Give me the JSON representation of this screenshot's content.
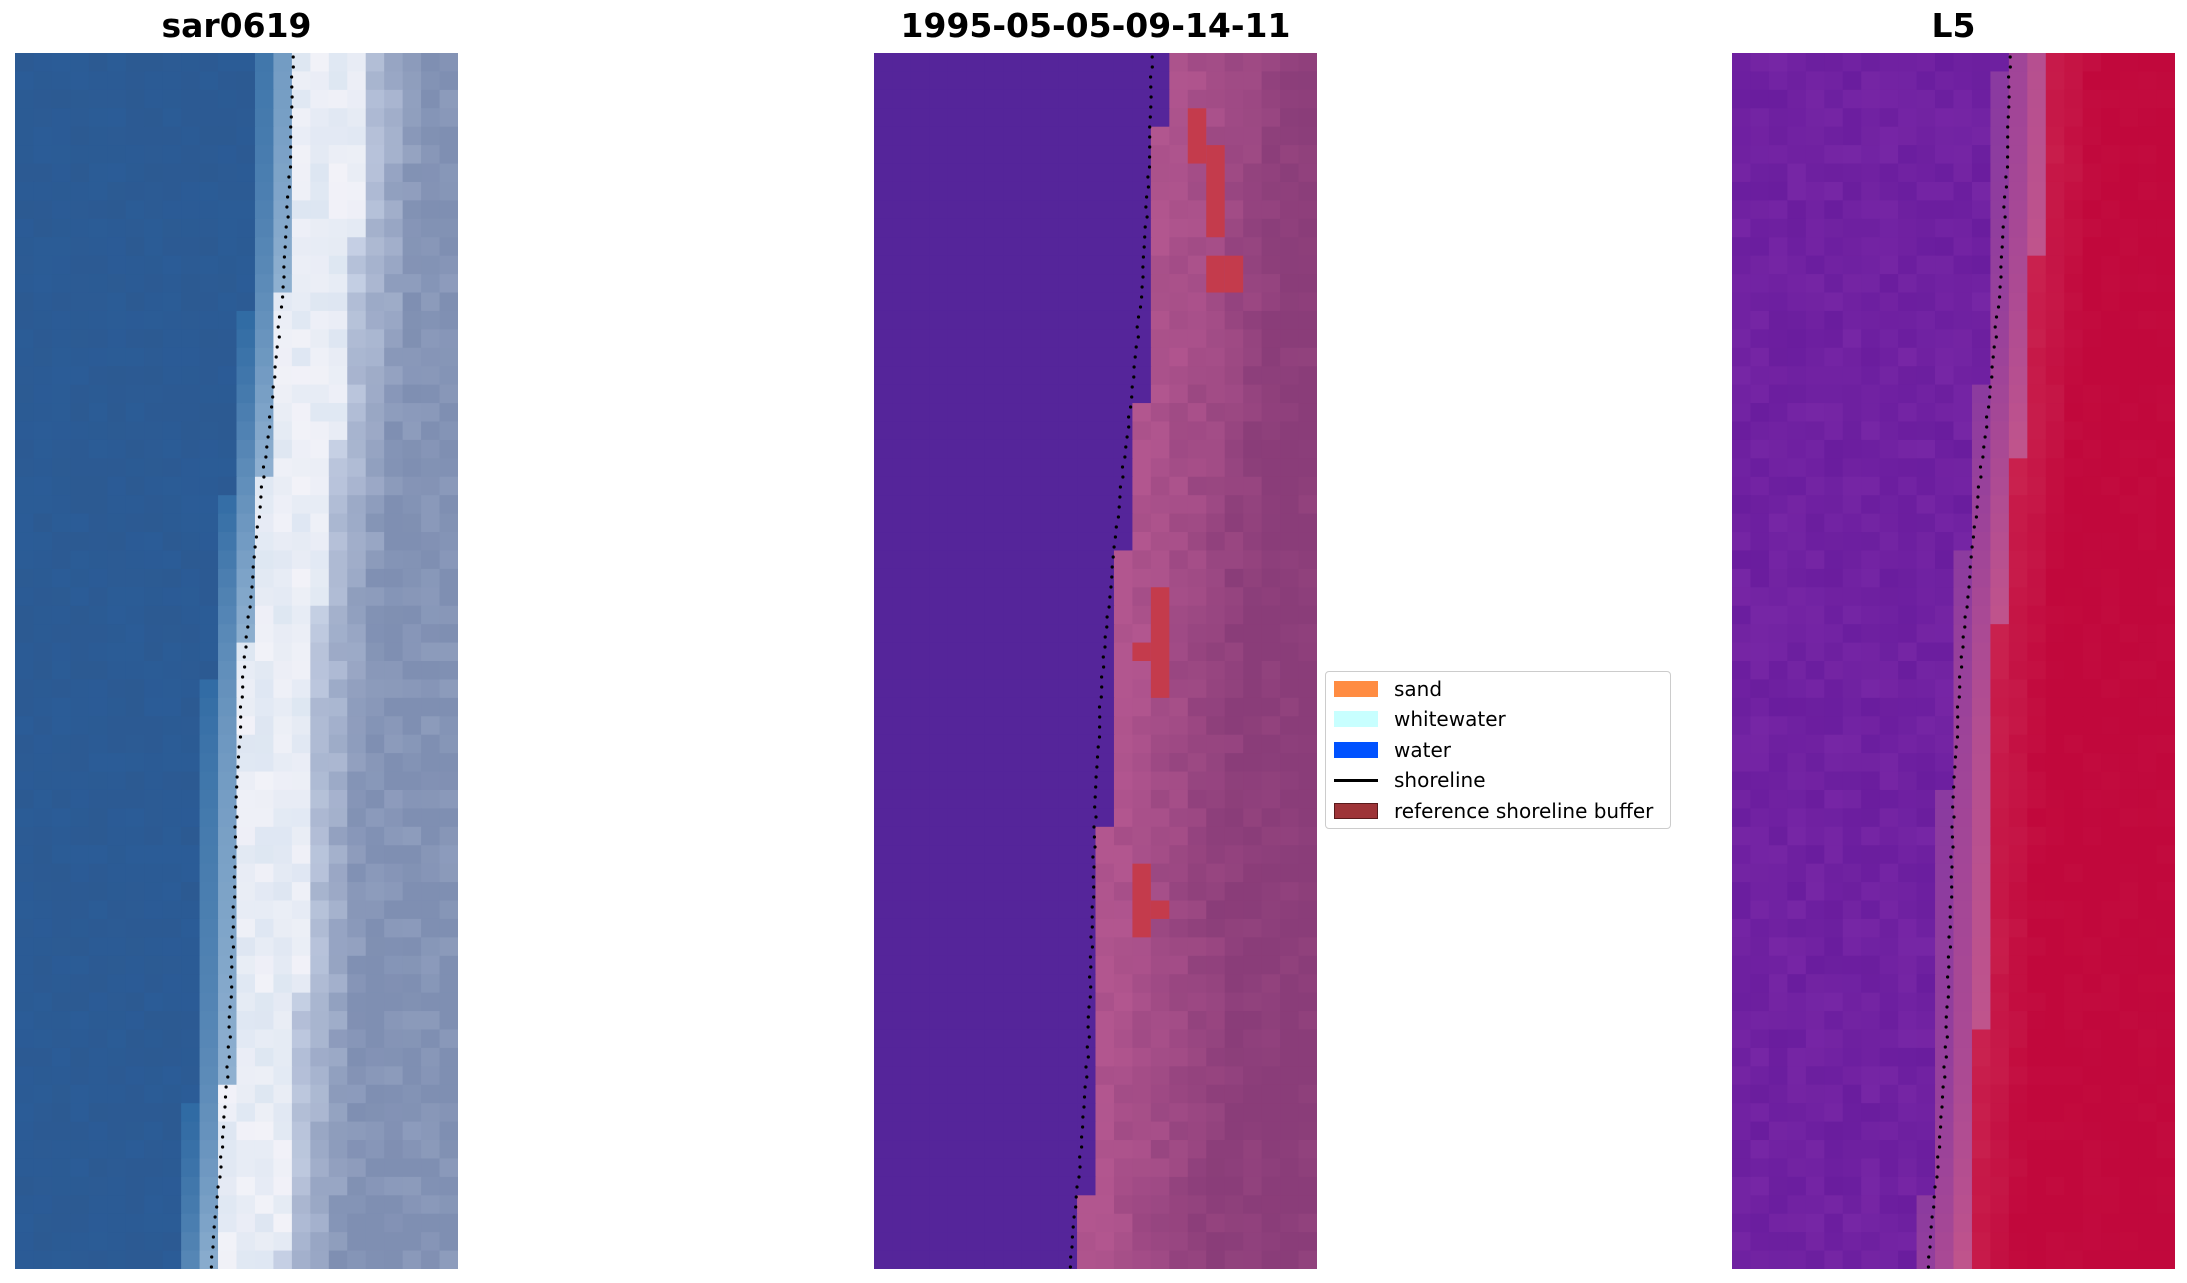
{
  "panels": [
    {
      "title": "sar0619",
      "kind": "rgb"
    },
    {
      "title": "1995-05-05-09-14-11",
      "kind": "classified"
    },
    {
      "title": "L5",
      "kind": "index"
    }
  ],
  "legend": {
    "items": [
      {
        "label": "sand",
        "color": "#ff8c42",
        "type": "patch"
      },
      {
        "label": "whitewater",
        "color": "#c8ffff",
        "type": "patch"
      },
      {
        "label": "water",
        "color": "#0052ff",
        "type": "patch"
      },
      {
        "label": "shoreline",
        "color": "#000000",
        "type": "line"
      },
      {
        "label": "reference shoreline buffer",
        "color": "#9e3438",
        "type": "patch"
      }
    ]
  },
  "colors": {
    "water_rgb": "#2c5a92",
    "surf_rgb": "#dde6f2",
    "beach_rgb": "#7f8fb2",
    "class_water": "#55259a",
    "class_land": "#b2568f",
    "class_land_dark": "#8a3d79",
    "buffer": "#c43b4c",
    "index_low": "#6a1d9e",
    "index_high": "#c1083c"
  }
}
